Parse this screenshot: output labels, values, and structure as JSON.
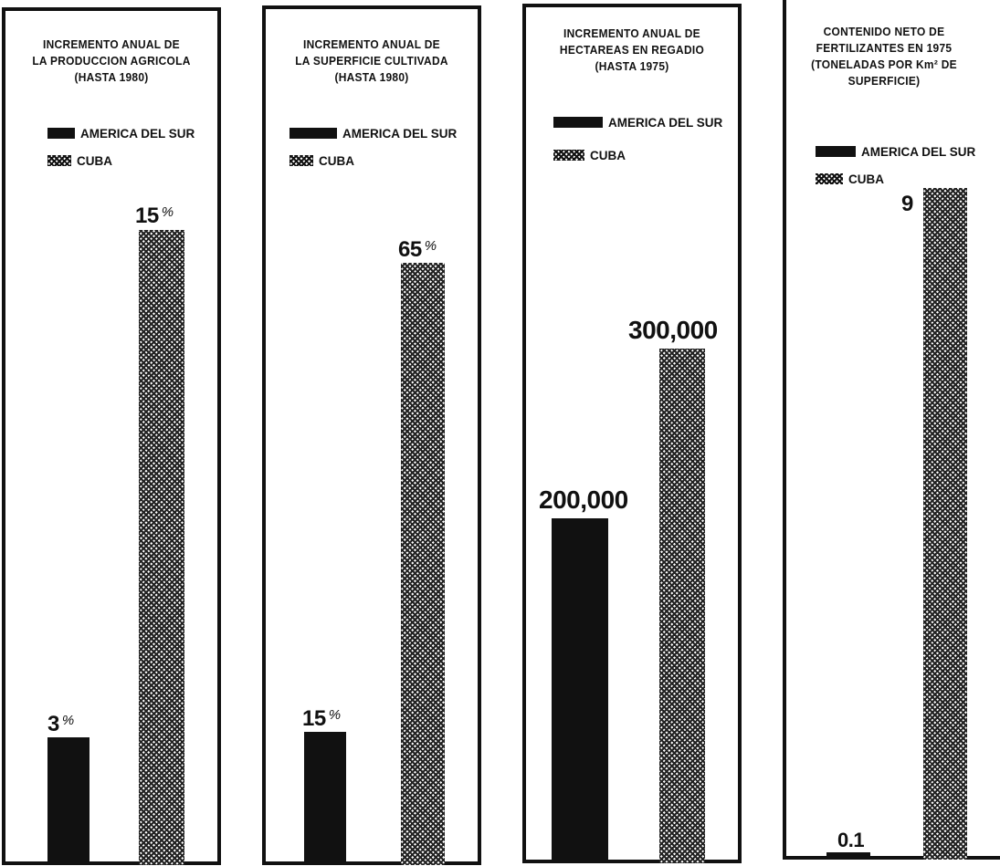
{
  "chart_data": [
    {
      "type": "bar",
      "title": "INCREMENTO ANUAL DE LA PRODUCCION AGRICOLA (HASTA 1980)",
      "title_lines": [
        "INCREMENTO ANUAL DE",
        "LA PRODUCCION AGRICOLA",
        "(HASTA 1980)"
      ],
      "legend": [
        "AMERICA DEL SUR",
        "CUBA"
      ],
      "legend_placement": "top",
      "series": [
        {
          "name": "AMERICA DEL SUR",
          "value": 3,
          "label": "3",
          "unit": "%",
          "style": "solid"
        },
        {
          "name": "CUBA",
          "value": 15,
          "label": "15",
          "unit": "%",
          "style": "hatch"
        }
      ],
      "grid": false
    },
    {
      "type": "bar",
      "title": "INCREMENTO ANUAL DE LA SUPERFICIE CULTIVADA (HASTA 1980)",
      "title_lines": [
        "INCREMENTO ANUAL DE",
        "LA SUPERFICIE CULTIVADA",
        "(HASTA 1980)"
      ],
      "legend": [
        "AMERICA DEL SUR",
        "CUBA"
      ],
      "legend_placement": "top",
      "series": [
        {
          "name": "AMERICA DEL SUR",
          "value": 15,
          "label": "15",
          "unit": "%",
          "style": "solid"
        },
        {
          "name": "CUBA",
          "value": 65,
          "label": "65",
          "unit": "%",
          "style": "hatch"
        }
      ],
      "grid": false
    },
    {
      "type": "bar",
      "title": "INCREMENTO ANUAL DE HECTAREAS EN REGADIO (HASTA 1975)",
      "title_lines": [
        "INCREMENTO ANUAL DE",
        "HECTAREAS EN REGADIO",
        "(HASTA 1975)"
      ],
      "legend": [
        "AMERICA DEL SUR",
        "CUBA"
      ],
      "legend_placement": "top",
      "series": [
        {
          "name": "AMERICA DEL SUR",
          "value": 200000,
          "label": "200,000",
          "unit": "",
          "style": "solid"
        },
        {
          "name": "CUBA",
          "value": 300000,
          "label": "300,000",
          "unit": "",
          "style": "hatch"
        }
      ],
      "grid": false
    },
    {
      "type": "bar",
      "title": "CONTENIDO NETO DE FERTILIZANTES EN 1975 (TONELADAS POR Km² DE SUPERFICIE)",
      "title_lines": [
        "CONTENIDO NETO DE",
        "FERTILIZANTES EN 1975",
        "(TONELADAS POR Km² DE",
        "SUPERFICIE)"
      ],
      "legend": [
        "AMERICA DEL SUR",
        "CUBA"
      ],
      "legend_placement": "top",
      "series": [
        {
          "name": "AMERICA DEL SUR",
          "value": 0.1,
          "label": "0.1",
          "unit": "",
          "style": "solid"
        },
        {
          "name": "CUBA",
          "value": 9,
          "label": "9",
          "unit": "",
          "style": "hatch"
        }
      ],
      "grid": false
    }
  ]
}
